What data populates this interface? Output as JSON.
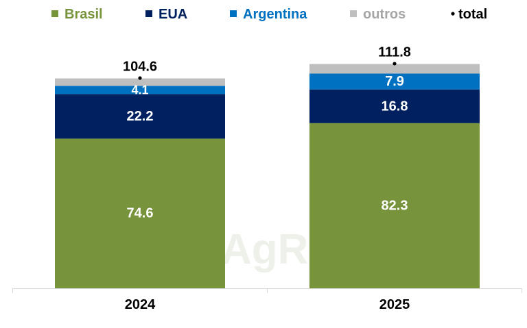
{
  "chart_data": {
    "type": "bar",
    "stacked": true,
    "title": "",
    "xlabel": "",
    "ylabel": "",
    "categories": [
      "2024",
      "2025"
    ],
    "series": [
      {
        "name": "Brasil",
        "values": [
          74.6,
          82.3
        ],
        "color": "#77933c",
        "show_labels": true
      },
      {
        "name": "EUA",
        "values": [
          22.2,
          16.8
        ],
        "color": "#002060",
        "show_labels": true
      },
      {
        "name": "Argentina",
        "values": [
          4.1,
          7.9
        ],
        "color": "#0070c0",
        "show_labels": true
      },
      {
        "name": "outros",
        "values": [
          3.7,
          4.8
        ],
        "color": "#bfbfbf",
        "show_labels": false
      }
    ],
    "totals": {
      "name": "total",
      "values": [
        104.6,
        111.8
      ],
      "labels": [
        "104.6",
        "111.8"
      ],
      "marker": "dot"
    },
    "value_labels": [
      [
        "74.6",
        "82.3"
      ],
      [
        "22.2",
        "16.8"
      ],
      [
        "4.1",
        "7.9"
      ],
      [
        "",
        ""
      ]
    ],
    "legend": {
      "position": "top",
      "items": [
        {
          "label": "Brasil",
          "color": "#77933c",
          "text_color": "#77933c",
          "marker": "square"
        },
        {
          "label": "EUA",
          "color": "#002060",
          "text_color": "#002060",
          "marker": "square"
        },
        {
          "label": "Argentina",
          "color": "#0070c0",
          "text_color": "#0070c0",
          "marker": "square"
        },
        {
          "label": "outros",
          "color": "#bfbfbf",
          "text_color": "#a6a6a6",
          "marker": "square"
        },
        {
          "label": "total",
          "color": "#000000",
          "text_color": "#000000",
          "marker": "dot"
        }
      ]
    },
    "ylim": [
      0,
      125
    ],
    "grid": false,
    "watermark": "AgRural"
  }
}
